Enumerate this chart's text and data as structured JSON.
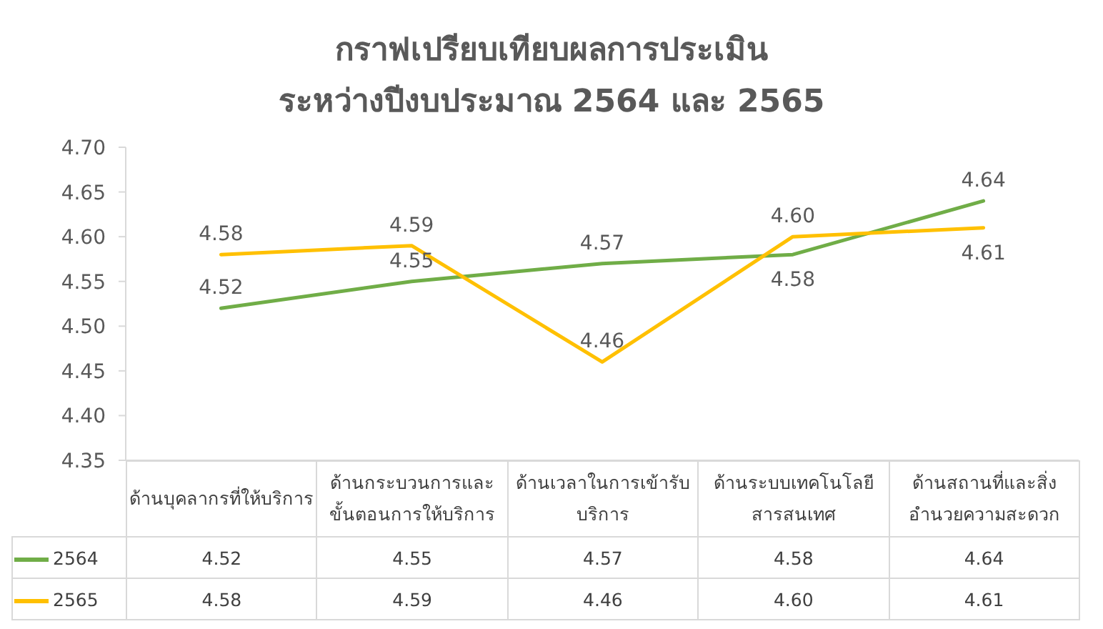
{
  "chart_data": {
    "type": "line",
    "title": "กราฟเปรียบเทียบผลการประเมิน",
    "subtitle": "ระหว่างปีงบประมาณ 2564 และ 2565",
    "categories": [
      "ด้านบุคลากรที่ให้บริการ",
      "ด้านกระบวนการและขั้นตอนการให้บริการ",
      "ด้านเวลาในการเข้ารับบริการ",
      "ด้านระบบเทคโนโลยีสารสนเทศ",
      "ด้านสถานที่และสิ่งอำนวยความสะดวก"
    ],
    "series": [
      {
        "name": "2564",
        "color": "#70ad47",
        "values": [
          4.52,
          4.55,
          4.57,
          4.58,
          4.64
        ],
        "value_labels": [
          "4.52",
          "4.55",
          "4.57",
          "4.58",
          "4.64"
        ]
      },
      {
        "name": "2565",
        "color": "#ffc000",
        "values": [
          4.58,
          4.59,
          4.46,
          4.6,
          4.61
        ],
        "value_labels": [
          "4.58",
          "4.59",
          "4.46",
          "4.60",
          "4.61"
        ]
      }
    ],
    "ylim": [
      4.35,
      4.7
    ],
    "yticks": [
      "4.35",
      "4.40",
      "4.45",
      "4.50",
      "4.55",
      "4.60",
      "4.65",
      "4.70"
    ],
    "legend": "bottom",
    "marker": "none",
    "line_style": "solid"
  }
}
